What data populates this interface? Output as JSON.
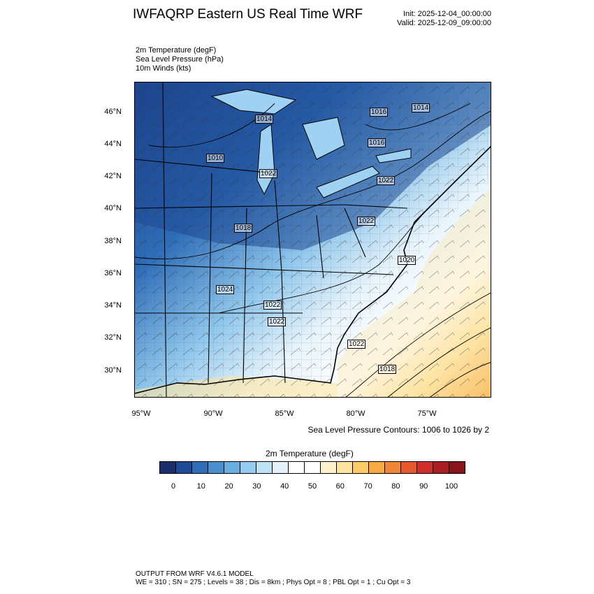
{
  "header": {
    "title": "IWFAQRP Eastern US Real Time WRF",
    "init": "Init: 2025-12-04_00:00:00",
    "valid": "Valid: 2025-12-09_09:00:00"
  },
  "variables": {
    "line1": "2m Temperature   (degF)",
    "line2": "Sea Level Pressure   (hPa)",
    "line3": "10m Winds   (kts)"
  },
  "map": {
    "lat_labels": [
      "46°N",
      "44°N",
      "42°N",
      "40°N",
      "38°N",
      "36°N",
      "34°N",
      "32°N",
      "30°N"
    ],
    "lon_labels": [
      "95°W",
      "90°W",
      "85°W",
      "80°W",
      "75°W"
    ],
    "pressure_labels": [
      "1010",
      "1014",
      "1016",
      "1014",
      "1016",
      "1022",
      "1018",
      "1022",
      "1022",
      "1024",
      "1022",
      "1022",
      "1020",
      "1018",
      "1022"
    ],
    "slp_note": "Sea Level Pressure Contours: 1006 to 1026 by 2"
  },
  "colorbar": {
    "title": "2m Temperature  (degF)",
    "labels": [
      "0",
      "10",
      "20",
      "30",
      "40",
      "50",
      "60",
      "70",
      "80",
      "90",
      "100"
    ],
    "colors": [
      "#1a2f6b",
      "#1f4a96",
      "#2e6db8",
      "#4a90cf",
      "#6aaedf",
      "#94cbef",
      "#bfe2f7",
      "#e4f2fb",
      "#ffffff",
      "#ffffff",
      "#fff3cc",
      "#fde4a0",
      "#fbcb6a",
      "#f8aa44",
      "#f28638",
      "#e45a2e",
      "#cf2f27",
      "#a81e22",
      "#8a1518"
    ]
  },
  "footer": {
    "line1": "OUTPUT FROM WRF V4.6.1 MODEL",
    "line2": "WE = 310 ; SN = 275 ; Levels = 38 ; Dis = 8km ; Phys Opt = 8 ; PBL Opt = 1 ; Cu Opt = 3"
  }
}
